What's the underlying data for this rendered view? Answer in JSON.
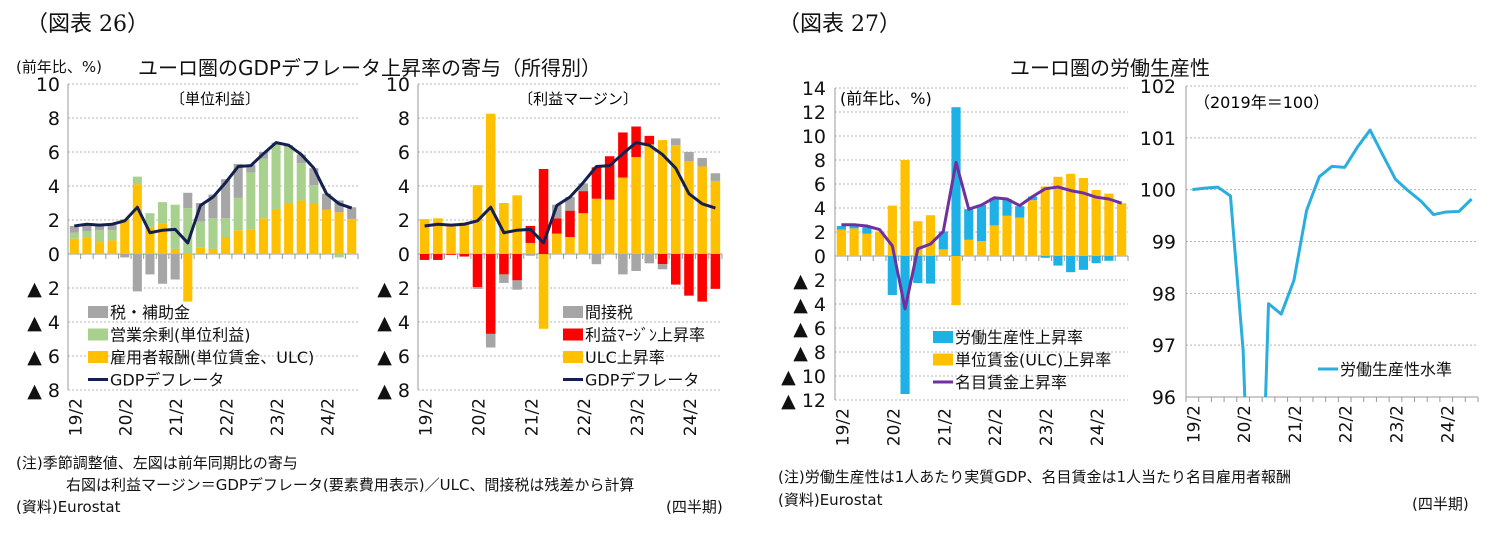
{
  "left": {
    "figure_label": "（図表 26）",
    "unit": "(前年比、%)",
    "title": "ユーロ圏のGDPデフレータ上昇率の寄与（所得別）",
    "note1": "(注)季節調整値、左図は前年同期比の寄与",
    "note2": "右図は利益マージン＝GDPデフレータ(要素費用表示)／ULC、間接税は残差から計算",
    "source": "(資料)Eurostat",
    "period": "(四半期)"
  },
  "right": {
    "figure_label": "（図表 27）",
    "title": "ユーロ圏の労働生産性",
    "note1": "(注)労働生産性は1人あたり実質GDP、名目賃金は1人当たり名目雇用者報酬",
    "source": "(資料)Eurostat",
    "period": "(四半期)"
  },
  "chart_data": [
    {
      "type": "bar",
      "stacked": true,
      "panel_label": "〔単位利益〕",
      "ylim": [
        -8,
        10
      ],
      "yticks": [
        10,
        8,
        6,
        4,
        2,
        0,
        -2,
        -4,
        -6,
        -8
      ],
      "ytick_labels": [
        "10",
        "8",
        "6",
        "4",
        "2",
        "0",
        "▲ 2",
        "▲ 4",
        "▲ 6",
        "▲ 8"
      ],
      "xtick_labels": [
        "19/2",
        "20/2",
        "21/2",
        "22/2",
        "23/2",
        "24/2"
      ],
      "grid": true,
      "legend": "bottom-left",
      "series": [
        {
          "name": "雇用者報酬(単位賃金、ULC)",
          "color": "#FFC000",
          "values": [
            0.9,
            0.95,
            0.7,
            0.8,
            2.0,
            4.1,
            1.6,
            1.8,
            0.3,
            -2.8,
            0.4,
            0.3,
            1.0,
            1.4,
            1.45,
            2.1,
            2.65,
            3.0,
            3.15,
            3.0,
            2.6,
            2.45,
            2.05
          ]
        },
        {
          "name": "営業余剰(単位利益)",
          "color": "#A9D18E",
          "values": [
            0.35,
            0.4,
            0.7,
            0.6,
            0.05,
            0.45,
            0.8,
            1.25,
            2.6,
            2.7,
            1.5,
            1.8,
            1.1,
            1.9,
            3.35,
            3.5,
            3.8,
            3.3,
            2.2,
            1.05,
            0,
            -0.2,
            0
          ]
        },
        {
          "name": "税・補助金",
          "color": "#A6A6A6",
          "values": [
            0.4,
            0.35,
            0.3,
            0.3,
            -0.2,
            -2.2,
            -1.2,
            -1.75,
            -1.5,
            0.9,
            1.1,
            1.4,
            2.3,
            2.0,
            0.45,
            0.4,
            0.1,
            0.1,
            0.5,
            1.0,
            0.95,
            0.7,
            0.7
          ]
        }
      ],
      "line": {
        "name": "GDPデフレータ",
        "color": "#142150",
        "values": [
          1.65,
          1.75,
          1.7,
          1.75,
          1.95,
          2.75,
          1.25,
          1.4,
          1.45,
          0.65,
          2.85,
          3.35,
          4.2,
          5.15,
          5.2,
          5.9,
          6.55,
          6.4,
          5.85,
          5.05,
          3.55,
          2.95,
          2.7
        ]
      },
      "legend_order": [
        2,
        1,
        0,
        "line"
      ]
    },
    {
      "type": "bar",
      "stacked": true,
      "panel_label": "〔利益マージン〕",
      "ylim": [
        -8,
        10
      ],
      "yticks": [
        10,
        8,
        6,
        4,
        2,
        0,
        -2,
        -4,
        -6,
        -8
      ],
      "ytick_labels": [
        "10",
        "8",
        "6",
        "4",
        "2",
        "0",
        "▲ 2",
        "▲ 4",
        "▲ 6",
        "▲ 8"
      ],
      "xtick_labels": [
        "19/2",
        "20/2",
        "21/2",
        "22/2",
        "23/2",
        "24/2"
      ],
      "grid": true,
      "legend": "bottom-right",
      "series": [
        {
          "name": "ULC上昇率",
          "color": "#FFC000",
          "values": [
            2.05,
            2.1,
            1.7,
            1.85,
            4.05,
            8.25,
            3.0,
            3.45,
            0.65,
            -4.4,
            1.2,
            1.0,
            2.4,
            3.25,
            3.2,
            4.5,
            5.7,
            6.45,
            6.7,
            6.4,
            5.45,
            5.15,
            4.3
          ]
        },
        {
          "name": "利益ﾏｰｼﾞﾝ上昇率",
          "color": "#FF0000",
          "values": [
            -0.35,
            -0.35,
            -0.05,
            -0.15,
            -1.95,
            -4.7,
            -1.2,
            -1.55,
            1.0,
            5.0,
            0.9,
            1.55,
            1.3,
            1.85,
            2.55,
            2.65,
            1.8,
            0.5,
            -0.6,
            -1.8,
            -2.45,
            -2.8,
            -2.05
          ]
        },
        {
          "name": "間接税",
          "color": "#A6A6A6",
          "values": [
            0,
            0,
            0,
            0,
            -0.1,
            -0.8,
            -0.5,
            -0.55,
            -0.1,
            0,
            0.8,
            0.8,
            0.45,
            -0.6,
            0,
            -1.2,
            -1.0,
            -0.55,
            -0.3,
            0.4,
            0.55,
            0.5,
            0.45
          ]
        }
      ],
      "line": {
        "name": "GDPデフレータ",
        "color": "#142150",
        "values": [
          1.65,
          1.75,
          1.7,
          1.75,
          1.95,
          2.75,
          1.25,
          1.4,
          1.45,
          0.65,
          2.85,
          3.35,
          4.2,
          5.15,
          5.2,
          5.9,
          6.55,
          6.4,
          5.85,
          5.05,
          3.55,
          2.95,
          2.7
        ]
      },
      "legend_order": [
        2,
        1,
        0,
        "line"
      ]
    },
    {
      "type": "bar",
      "stacked": true,
      "unit": "(前年比、%)",
      "ylim": [
        -12,
        14
      ],
      "yticks": [
        14,
        12,
        10,
        8,
        6,
        4,
        2,
        0,
        -2,
        -4,
        -6,
        -8,
        -10,
        -12
      ],
      "ytick_labels": [
        "14",
        "12",
        "10",
        "8",
        "6",
        "4",
        "2",
        "0",
        "▲ 2",
        "▲ 4",
        "▲ 6",
        "▲ 8",
        "▲ 10",
        "▲ 12"
      ],
      "xtick_labels": [
        "19/2",
        "20/2",
        "21/2",
        "22/2",
        "23/2",
        "24/2"
      ],
      "grid": true,
      "legend": "bottom-right",
      "series": [
        {
          "name": "単位賃金(ULC)上昇率",
          "color": "#FFC000",
          "values": [
            2.2,
            2.3,
            1.85,
            2.05,
            4.2,
            8.0,
            2.9,
            3.4,
            0.55,
            -4.1,
            1.35,
            1.25,
            2.55,
            3.35,
            3.2,
            4.65,
            5.8,
            6.6,
            6.85,
            6.5,
            5.5,
            5.2,
            4.4
          ]
        },
        {
          "name": "労働生産性上昇率",
          "color": "#1EB1E6",
          "values": [
            0.3,
            0.2,
            0.55,
            0,
            -3.25,
            -11.5,
            -2.25,
            -2.3,
            1.5,
            12.4,
            2.55,
            3.0,
            2.3,
            1.4,
            0.95,
            0.3,
            -0.15,
            -0.8,
            -1.35,
            -1.15,
            -0.6,
            -0.4,
            0
          ]
        }
      ],
      "line": {
        "name": "名目賃金上昇率",
        "color": "#7030A0",
        "values": [
          2.6,
          2.6,
          2.5,
          2.2,
          0.85,
          -4.4,
          0.6,
          1.0,
          2.05,
          7.8,
          3.9,
          4.25,
          4.85,
          4.75,
          4.2,
          4.95,
          5.6,
          5.75,
          5.45,
          5.25,
          4.9,
          4.75,
          4.4
        ]
      },
      "legend_order": [
        1,
        0,
        "line"
      ]
    },
    {
      "type": "line",
      "unit": "（2019年＝100）",
      "ylim": [
        96,
        102
      ],
      "yticks": [
        102,
        101,
        100,
        99,
        98,
        97,
        96
      ],
      "ytick_labels": [
        "102",
        "101",
        "100",
        "99",
        "98",
        "97",
        "96"
      ],
      "xtick_labels": [
        "19/2",
        "20/2",
        "21/2",
        "22/2",
        "23/2",
        "24/2"
      ],
      "grid": true,
      "legend": "bottom-right",
      "series": [],
      "line": {
        "name": "労働生産性水準",
        "color": "#2AADDF",
        "values": [
          100.0,
          100.03,
          100.05,
          99.88,
          96.9,
          90,
          97.8,
          97.6,
          98.25,
          99.6,
          100.25,
          100.45,
          100.43,
          100.82,
          101.15,
          100.67,
          100.2,
          99.98,
          99.78,
          99.52,
          99.57,
          99.58,
          99.82
        ]
      },
      "legend_order": [
        "line"
      ]
    }
  ]
}
